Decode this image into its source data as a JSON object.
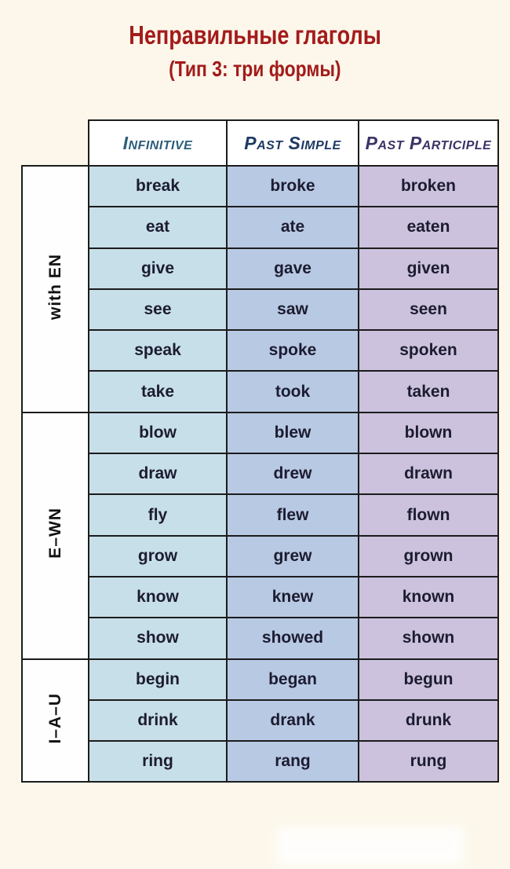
{
  "page": {
    "background_color": "#fcf7ea",
    "title": "Неправильные глаголы",
    "subtitle": "(Тип 3: три формы)",
    "title_color": "#a31b1b"
  },
  "table": {
    "border_color": "#1c1c1c",
    "header_background": "#ffffff",
    "headers": [
      {
        "label": "Infinitive",
        "color": "#2b5d7a"
      },
      {
        "label": "Past Simple",
        "color": "#1e3a63"
      },
      {
        "label": "Past Participle",
        "color": "#3c3366"
      }
    ],
    "column_colors": [
      "#c7dfe9",
      "#b8c9e4",
      "#ccc2dd"
    ],
    "sections": [
      {
        "label": "with EN",
        "rows": [
          [
            "break",
            "broke",
            "broken"
          ],
          [
            "eat",
            "ate",
            "eaten"
          ],
          [
            "give",
            "gave",
            "given"
          ],
          [
            "see",
            "saw",
            "seen"
          ],
          [
            "speak",
            "spoke",
            "spoken"
          ],
          [
            "take",
            "took",
            "taken"
          ]
        ]
      },
      {
        "label": "E–WN",
        "rows": [
          [
            "blow",
            "blew",
            "blown"
          ],
          [
            "draw",
            "drew",
            "drawn"
          ],
          [
            "fly",
            "flew",
            "flown"
          ],
          [
            "grow",
            "grew",
            "grown"
          ],
          [
            "know",
            "knew",
            "known"
          ],
          [
            "show",
            "showed",
            "shown"
          ]
        ]
      },
      {
        "label": "I–A–U",
        "rows": [
          [
            "begin",
            "began",
            "begun"
          ],
          [
            "drink",
            "drank",
            "drunk"
          ],
          [
            "ring",
            "rang",
            "rung"
          ]
        ]
      }
    ]
  }
}
